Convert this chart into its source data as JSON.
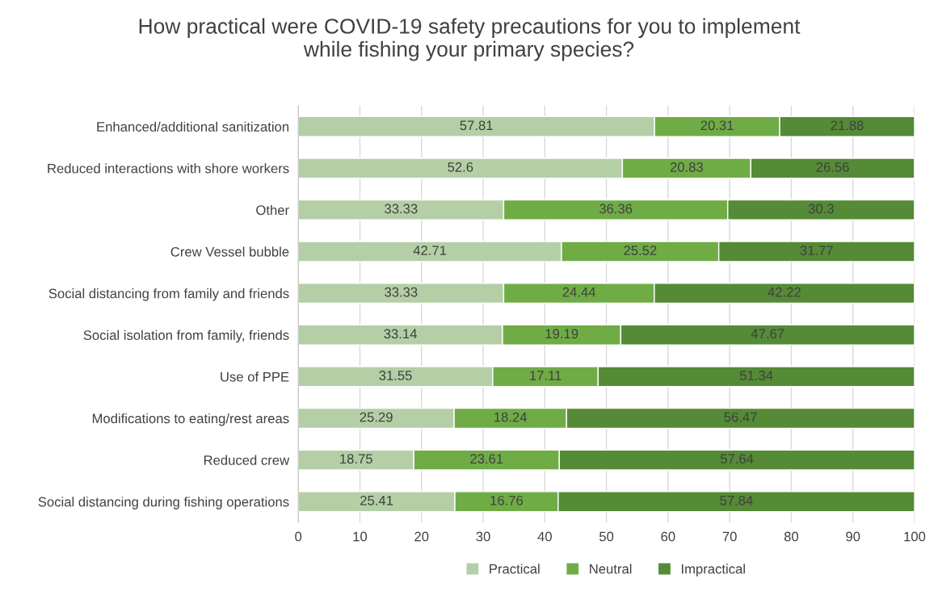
{
  "chart_data": {
    "type": "bar",
    "orientation": "horizontal",
    "stacked": true,
    "title": "How practical were COVID-19 safety precautions for you to implement\nwhile fishing your primary species?",
    "categories": [
      "Enhanced/additional sanitization",
      "Reduced interactions with shore workers",
      "Other",
      "Crew Vessel bubble",
      "Social distancing from family and friends",
      "Social isolation from family, friends",
      "Use of PPE",
      "Modifications to eating/rest areas",
      "Reduced crew",
      "Social distancing during fishing operations"
    ],
    "series": [
      {
        "name": "Practical",
        "color": "#b4cfa6",
        "values": [
          57.81,
          52.6,
          33.33,
          42.71,
          33.33,
          33.14,
          31.55,
          25.29,
          18.75,
          25.41
        ]
      },
      {
        "name": "Neutral",
        "color": "#6fac46",
        "values": [
          20.31,
          20.83,
          36.36,
          25.52,
          24.44,
          19.19,
          17.11,
          18.24,
          23.61,
          16.76
        ]
      },
      {
        "name": "Impractical",
        "color": "#558a36",
        "values": [
          21.88,
          26.56,
          30.3,
          31.77,
          42.22,
          47.67,
          51.34,
          56.47,
          57.64,
          57.84
        ]
      }
    ],
    "xlim": [
      0,
      100
    ],
    "xticks": [
      0,
      10,
      20,
      30,
      40,
      50,
      60,
      70,
      80,
      90,
      100
    ],
    "grid": "x",
    "legend": "bottom",
    "data_labels": true
  }
}
